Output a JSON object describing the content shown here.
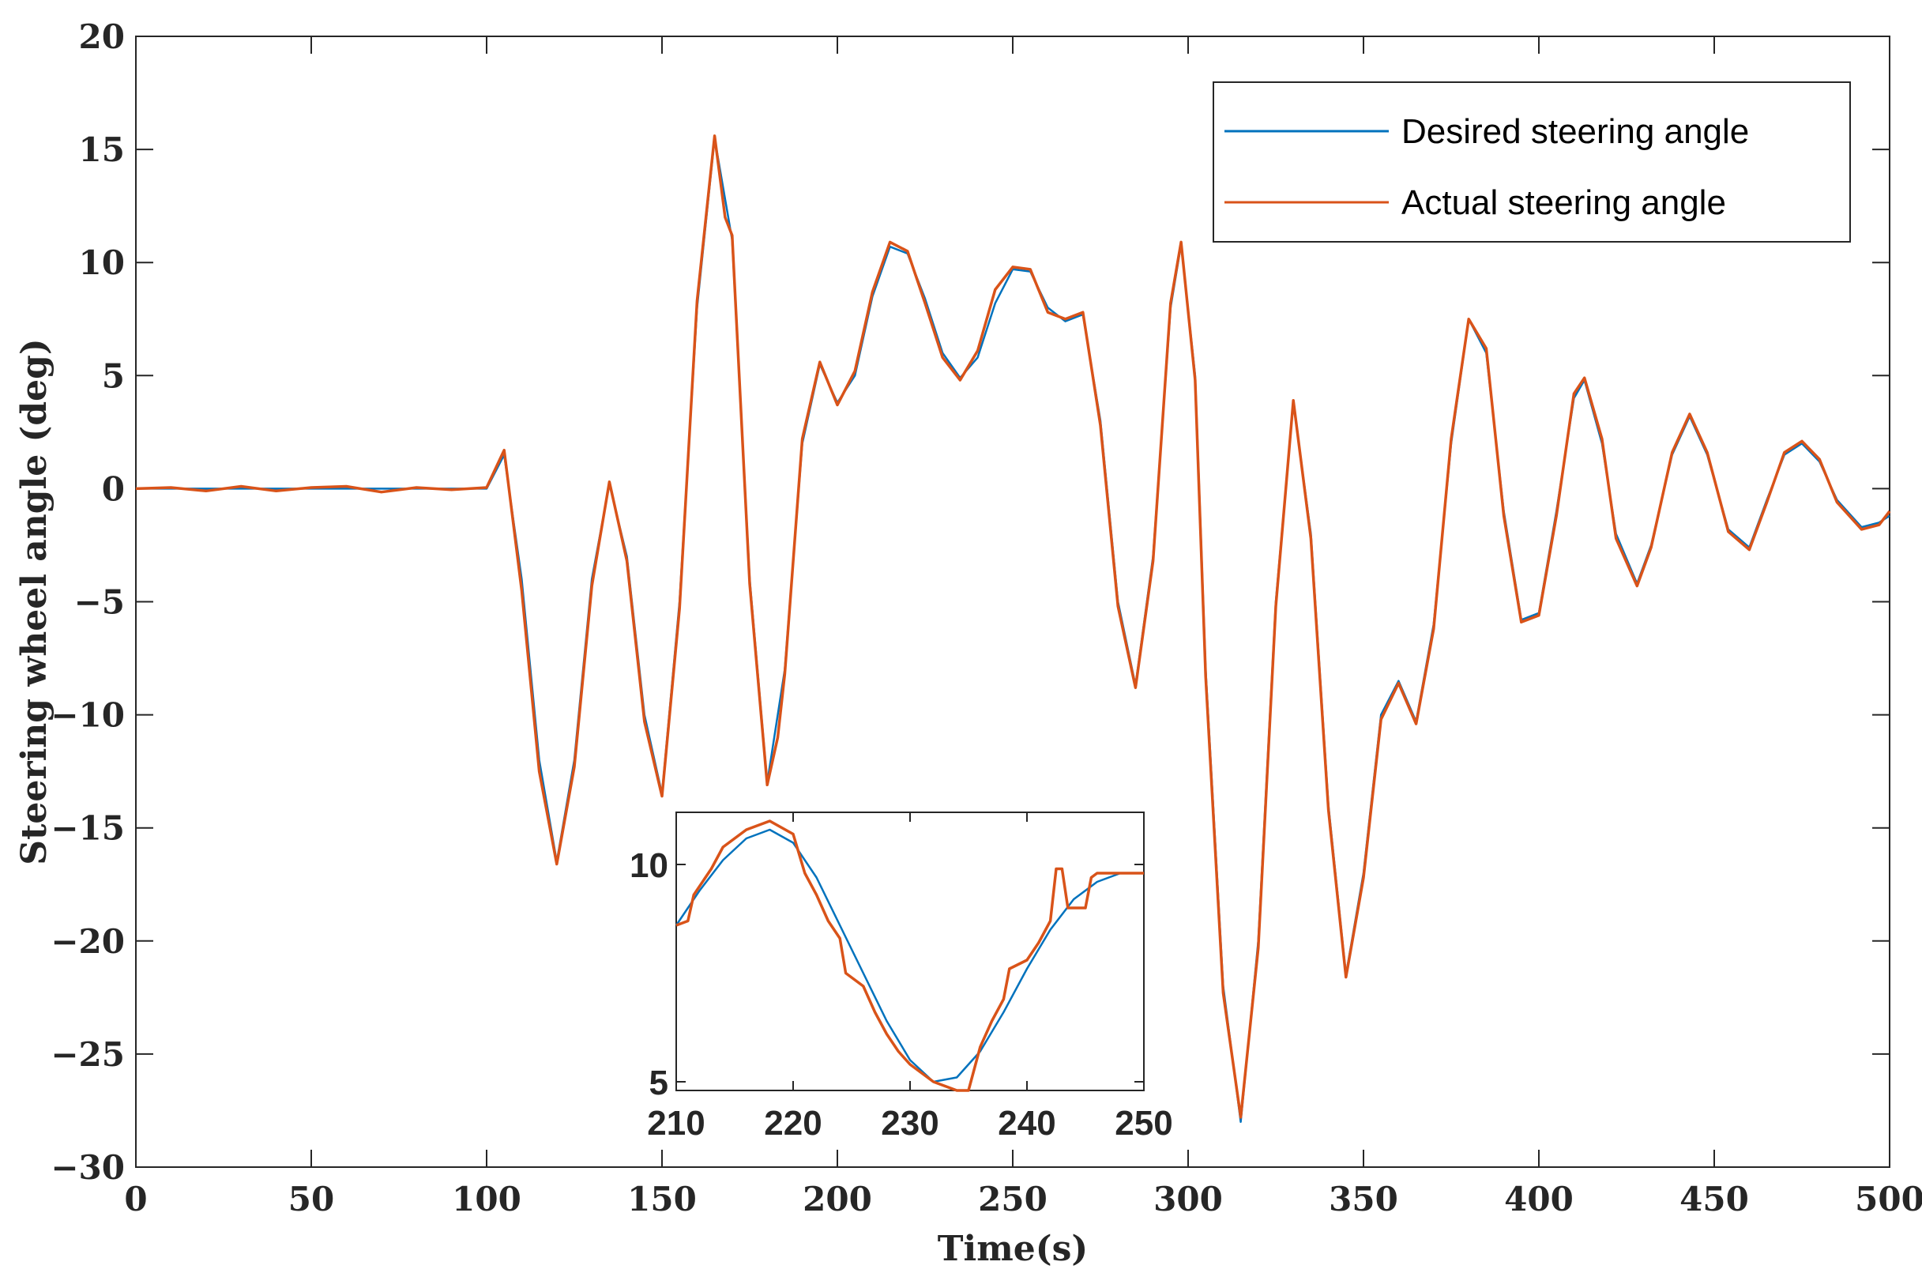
{
  "chart_data": [
    {
      "type": "line",
      "xlabel": "Time(s)",
      "ylabel": "Steering wheel angle (deg)",
      "xlim": [
        0,
        500
      ],
      "ylim": [
        -30,
        20
      ],
      "xticks": [
        0,
        50,
        100,
        150,
        200,
        250,
        300,
        350,
        400,
        450,
        500
      ],
      "yticks": [
        20,
        15,
        10,
        5,
        0,
        -5,
        -10,
        -15,
        -20,
        -25,
        -30
      ],
      "xtick_labels": [
        "0",
        "50",
        "100",
        "150",
        "200",
        "250",
        "300",
        "350",
        "400",
        "450",
        "500"
      ],
      "ytick_labels": [
        "20",
        "15",
        "10",
        "5",
        "0",
        "−5",
        "−10",
        "−15",
        "−20",
        "−25",
        "−30"
      ],
      "grid": false,
      "legend": "top-right",
      "series": [
        {
          "name": "Desired steering angle",
          "color": "#0072BD",
          "points": [
            [
              0,
              0
            ],
            [
              100,
              0
            ],
            [
              105,
              1.5
            ],
            [
              110,
              -4
            ],
            [
              115,
              -12
            ],
            [
              120,
              -16.5
            ],
            [
              125,
              -12
            ],
            [
              130,
              -4
            ],
            [
              135,
              0.2
            ],
            [
              140,
              -3
            ],
            [
              145,
              -10
            ],
            [
              150,
              -13.5
            ],
            [
              155,
              -5
            ],
            [
              160,
              8
            ],
            [
              165,
              15.5
            ],
            [
              170,
              11
            ],
            [
              175,
              -4
            ],
            [
              180,
              -13
            ],
            [
              185,
              -8
            ],
            [
              190,
              2
            ],
            [
              195,
              5.5
            ],
            [
              200,
              3.8
            ],
            [
              205,
              5
            ],
            [
              210,
              8.5
            ],
            [
              215,
              10.7
            ],
            [
              220,
              10.4
            ],
            [
              225,
              8.4
            ],
            [
              230,
              6
            ],
            [
              235,
              4.9
            ],
            [
              240,
              5.8
            ],
            [
              245,
              8.2
            ],
            [
              250,
              9.7
            ],
            [
              255,
              9.6
            ],
            [
              260,
              8
            ],
            [
              265,
              7.4
            ],
            [
              270,
              7.7
            ],
            [
              275,
              3
            ],
            [
              280,
              -5
            ],
            [
              285,
              -8.7
            ],
            [
              290,
              -3
            ],
            [
              295,
              8
            ],
            [
              298,
              10.8
            ],
            [
              302,
              5
            ],
            [
              305,
              -8
            ],
            [
              310,
              -22
            ],
            [
              315,
              -28
            ],
            [
              320,
              -20
            ],
            [
              325,
              -5
            ],
            [
              330,
              3.8
            ],
            [
              335,
              -2
            ],
            [
              340,
              -14
            ],
            [
              345,
              -21.5
            ],
            [
              350,
              -17
            ],
            [
              355,
              -10
            ],
            [
              360,
              -8.5
            ],
            [
              365,
              -10.3
            ],
            [
              370,
              -6
            ],
            [
              375,
              2
            ],
            [
              380,
              7.5
            ],
            [
              385,
              6
            ],
            [
              390,
              -1
            ],
            [
              395,
              -5.8
            ],
            [
              400,
              -5.5
            ],
            [
              405,
              -1
            ],
            [
              410,
              4
            ],
            [
              413,
              4.8
            ],
            [
              418,
              2
            ],
            [
              422,
              -2
            ],
            [
              428,
              -4.2
            ],
            [
              432,
              -2.5
            ],
            [
              438,
              1.5
            ],
            [
              443,
              3.2
            ],
            [
              448,
              1.5
            ],
            [
              454,
              -1.8
            ],
            [
              460,
              -2.6
            ],
            [
              465,
              -0.5
            ],
            [
              470,
              1.5
            ],
            [
              475,
              2
            ],
            [
              480,
              1.2
            ],
            [
              485,
              -0.5
            ],
            [
              492,
              -1.7
            ],
            [
              497,
              -1.5
            ],
            [
              500,
              -1.2
            ]
          ]
        },
        {
          "name": "Actual steering angle",
          "color": "#D95319",
          "points": [
            [
              0,
              0
            ],
            [
              10,
              0.05
            ],
            [
              20,
              -0.1
            ],
            [
              30,
              0.1
            ],
            [
              40,
              -0.1
            ],
            [
              50,
              0.05
            ],
            [
              60,
              0.1
            ],
            [
              70,
              -0.15
            ],
            [
              80,
              0.05
            ],
            [
              90,
              -0.05
            ],
            [
              100,
              0.05
            ],
            [
              105,
              1.7
            ],
            [
              110,
              -4.5
            ],
            [
              115,
              -12.5
            ],
            [
              120,
              -16.6
            ],
            [
              125,
              -12.3
            ],
            [
              130,
              -4.3
            ],
            [
              135,
              0.3
            ],
            [
              140,
              -3.2
            ],
            [
              145,
              -10.3
            ],
            [
              150,
              -13.6
            ],
            [
              155,
              -5.3
            ],
            [
              160,
              8.3
            ],
            [
              165,
              15.6
            ],
            [
              168,
              12
            ],
            [
              170,
              11.2
            ],
            [
              175,
              -4.2
            ],
            [
              180,
              -13.1
            ],
            [
              183,
              -11
            ],
            [
              185,
              -8.2
            ],
            [
              190,
              2.2
            ],
            [
              195,
              5.6
            ],
            [
              200,
              3.7
            ],
            [
              205,
              5.2
            ],
            [
              210,
              8.7
            ],
            [
              215,
              10.9
            ],
            [
              220,
              10.5
            ],
            [
              225,
              8.2
            ],
            [
              230,
              5.8
            ],
            [
              235,
              4.8
            ],
            [
              240,
              6.1
            ],
            [
              245,
              8.8
            ],
            [
              250,
              9.8
            ],
            [
              255,
              9.7
            ],
            [
              260,
              7.8
            ],
            [
              265,
              7.5
            ],
            [
              270,
              7.8
            ],
            [
              275,
              2.8
            ],
            [
              280,
              -5.2
            ],
            [
              285,
              -8.8
            ],
            [
              290,
              -3.2
            ],
            [
              295,
              8.2
            ],
            [
              298,
              10.9
            ],
            [
              302,
              4.8
            ],
            [
              305,
              -8.3
            ],
            [
              310,
              -22.3
            ],
            [
              315,
              -27.8
            ],
            [
              320,
              -20.3
            ],
            [
              325,
              -5.2
            ],
            [
              330,
              3.9
            ],
            [
              335,
              -2.2
            ],
            [
              340,
              -14.2
            ],
            [
              345,
              -21.6
            ],
            [
              350,
              -17.2
            ],
            [
              355,
              -10.2
            ],
            [
              360,
              -8.6
            ],
            [
              365,
              -10.4
            ],
            [
              370,
              -6.2
            ],
            [
              375,
              2.2
            ],
            [
              380,
              7.5
            ],
            [
              385,
              6.2
            ],
            [
              390,
              -1.2
            ],
            [
              395,
              -5.9
            ],
            [
              400,
              -5.6
            ],
            [
              405,
              -1.2
            ],
            [
              410,
              4.2
            ],
            [
              413,
              4.9
            ],
            [
              418,
              2.2
            ],
            [
              422,
              -2.2
            ],
            [
              428,
              -4.3
            ],
            [
              432,
              -2.6
            ],
            [
              438,
              1.6
            ],
            [
              443,
              3.3
            ],
            [
              448,
              1.6
            ],
            [
              454,
              -1.9
            ],
            [
              460,
              -2.7
            ],
            [
              465,
              -0.6
            ],
            [
              470,
              1.6
            ],
            [
              475,
              2.1
            ],
            [
              480,
              1.3
            ],
            [
              485,
              -0.6
            ],
            [
              492,
              -1.8
            ],
            [
              497,
              -1.6
            ],
            [
              500,
              -1
            ]
          ]
        }
      ]
    },
    {
      "type": "line",
      "title": "",
      "xlim": [
        210,
        250
      ],
      "ylim": [
        4.8,
        11.2
      ],
      "xticks": [
        210,
        220,
        230,
        240,
        250
      ],
      "yticks": [
        10,
        5
      ],
      "xtick_labels": [
        "210",
        "220",
        "230",
        "240",
        "250"
      ],
      "ytick_labels": [
        "10",
        "5"
      ],
      "grid": false,
      "series": [
        {
          "color": "#0072BD",
          "points": [
            [
              210,
              8.6
            ],
            [
              212,
              9.4
            ],
            [
              214,
              10.1
            ],
            [
              216,
              10.6
            ],
            [
              218,
              10.8
            ],
            [
              220,
              10.5
            ],
            [
              222,
              9.7
            ],
            [
              224,
              8.6
            ],
            [
              226,
              7.5
            ],
            [
              228,
              6.4
            ],
            [
              230,
              5.5
            ],
            [
              232,
              5.0
            ],
            [
              234,
              5.1
            ],
            [
              236,
              5.7
            ],
            [
              238,
              6.6
            ],
            [
              240,
              7.6
            ],
            [
              242,
              8.5
            ],
            [
              244,
              9.2
            ],
            [
              246,
              9.6
            ],
            [
              248,
              9.8
            ],
            [
              250,
              9.8
            ]
          ]
        },
        {
          "color": "#D95319",
          "points": [
            [
              210,
              8.6
            ],
            [
              211,
              8.7
            ],
            [
              211.5,
              9.3
            ],
            [
              213,
              9.9
            ],
            [
              214,
              10.4
            ],
            [
              216,
              10.8
            ],
            [
              218,
              11.0
            ],
            [
              220,
              10.7
            ],
            [
              221,
              9.8
            ],
            [
              222,
              9.3
            ],
            [
              223,
              8.7
            ],
            [
              224,
              8.3
            ],
            [
              224.5,
              7.5
            ],
            [
              226,
              7.2
            ],
            [
              227,
              6.6
            ],
            [
              228,
              6.1
            ],
            [
              229,
              5.7
            ],
            [
              230,
              5.4
            ],
            [
              231,
              5.2
            ],
            [
              232,
              5.0
            ],
            [
              233,
              4.9
            ],
            [
              234,
              4.8
            ],
            [
              235,
              4.8
            ],
            [
              235.5,
              5.3
            ],
            [
              236,
              5.8
            ],
            [
              237,
              6.4
            ],
            [
              238,
              6.9
            ],
            [
              238.5,
              7.6
            ],
            [
              240,
              7.8
            ],
            [
              241,
              8.2
            ],
            [
              242,
              8.7
            ],
            [
              242.5,
              9.9
            ],
            [
              243,
              9.9
            ],
            [
              243.5,
              9.0
            ],
            [
              244,
              9.0
            ],
            [
              245,
              9.0
            ],
            [
              245.5,
              9.7
            ],
            [
              246,
              9.8
            ],
            [
              248,
              9.8
            ],
            [
              250,
              9.8
            ]
          ]
        }
      ]
    }
  ]
}
